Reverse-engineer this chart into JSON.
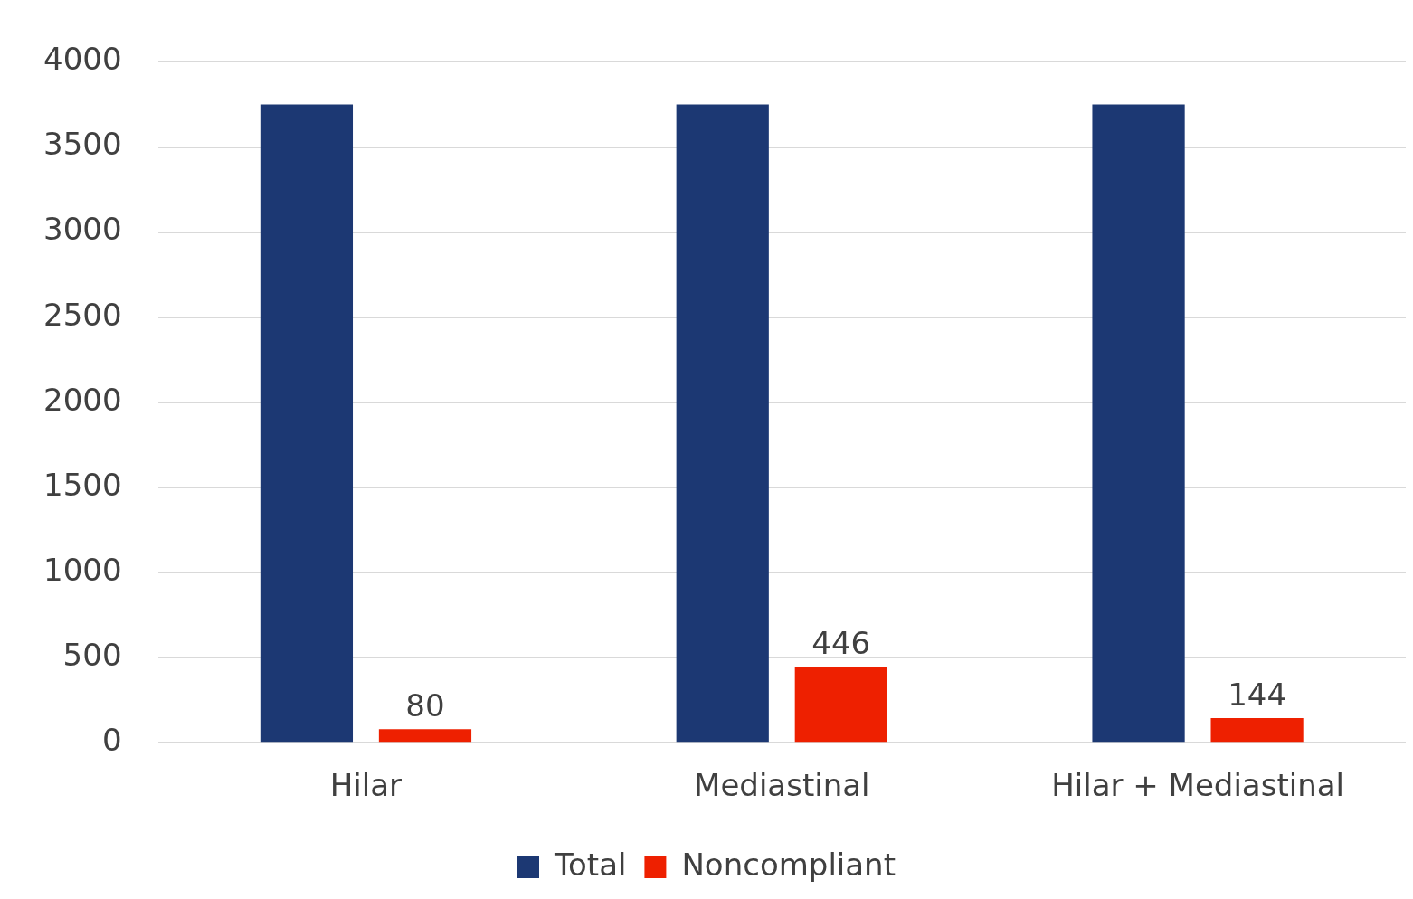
{
  "chart_data": {
    "type": "bar",
    "categories": [
      "Hilar",
      "Mediastinal",
      "Hilar + Mediastinal"
    ],
    "series": [
      {
        "name": "Total",
        "color": "#1c3873",
        "values": [
          3750,
          3750,
          3750
        ]
      },
      {
        "name": "Noncompliant",
        "color": "#ee2000",
        "values": [
          80,
          446,
          144
        ],
        "value_labels": [
          "80",
          "446",
          "144"
        ]
      }
    ],
    "ylim": [
      0,
      4000
    ],
    "yticks": [
      0,
      500,
      1000,
      1500,
      2000,
      2500,
      3000,
      3500,
      4000
    ],
    "grid": "y",
    "legend": "bottom"
  }
}
